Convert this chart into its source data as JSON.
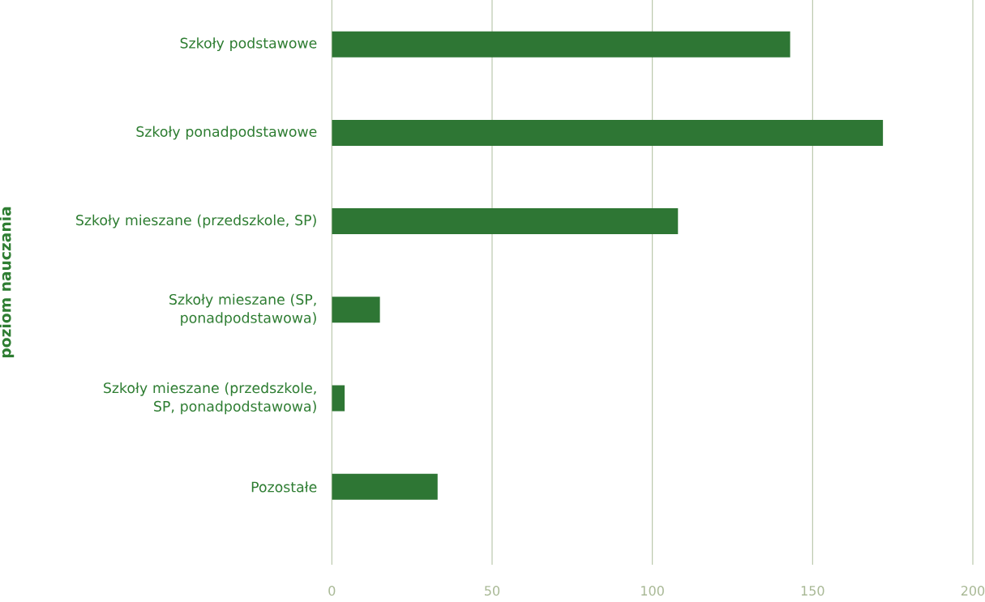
{
  "chart_data": {
    "type": "bar",
    "orientation": "horizontal",
    "ylabel": "poziom nauczania",
    "categories": [
      "Szkoły podstawowe",
      "Szkoły ponadpodstawowe",
      "Szkoły mieszane (przedszkole, SP)",
      "Szkoły mieszane (SP, ponadpodstawowa)",
      "Szkoły mieszane (przedszkole, SP, ponadpodstawowa)",
      "Pozostałe"
    ],
    "values": [
      143,
      172,
      108,
      15,
      4,
      33
    ],
    "color": "#2e7634",
    "xlim": [
      0,
      200
    ],
    "xticks": [
      0,
      50,
      100,
      150,
      200
    ],
    "grid": "x"
  }
}
